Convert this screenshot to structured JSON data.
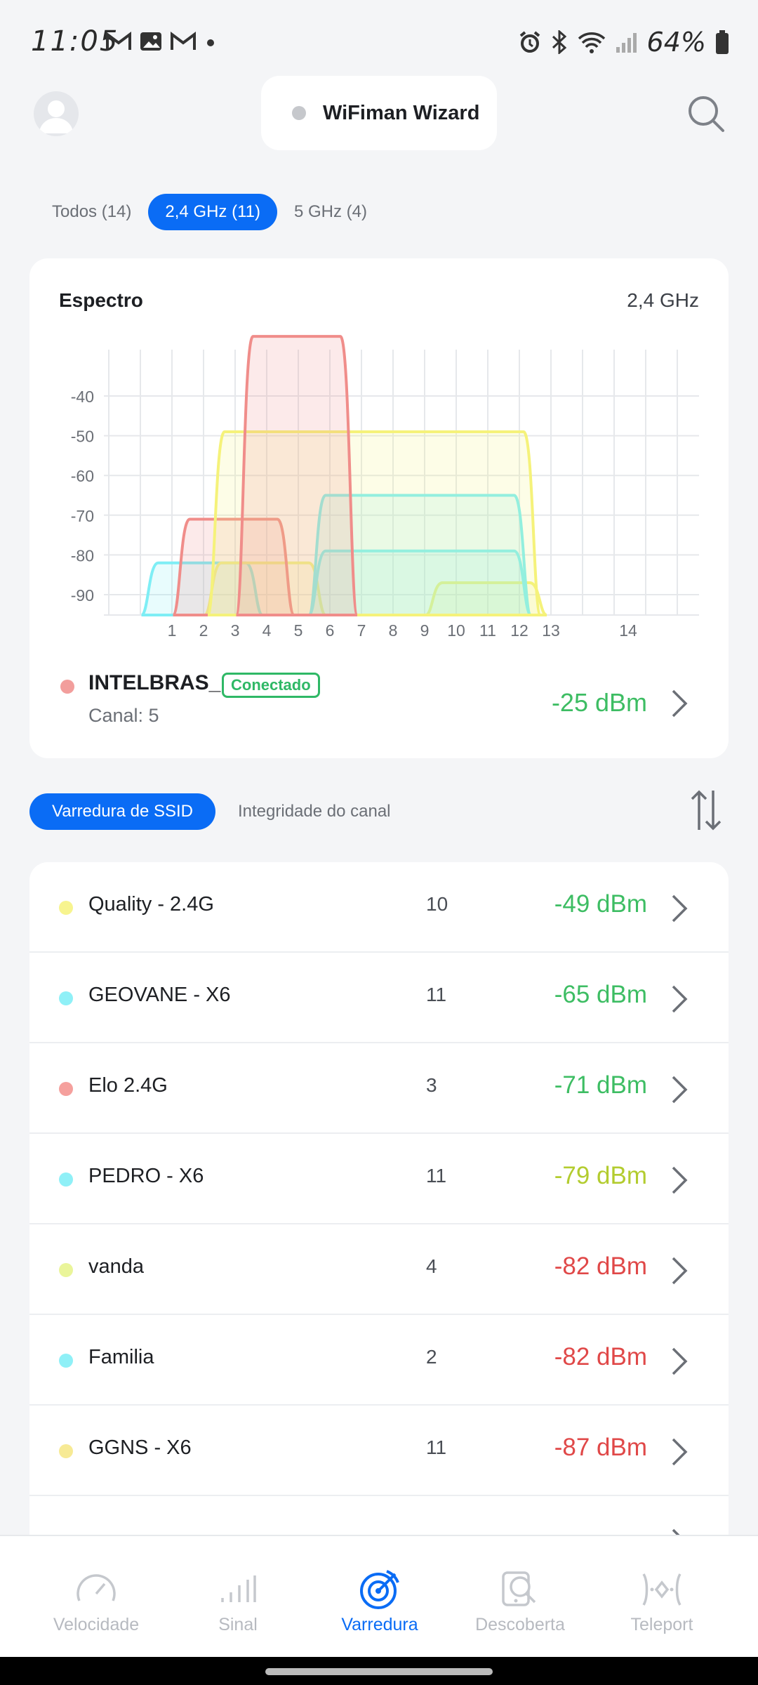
{
  "status_bar": {
    "time": "11:05",
    "battery": "64%"
  },
  "header": {
    "wizard_label": "WiFiman Wizard"
  },
  "band_tabs": [
    {
      "label": "Todos (14)",
      "active": false
    },
    {
      "label": "2,4 GHz (11)",
      "active": true
    },
    {
      "label": "5 GHz (4)",
      "active": false
    }
  ],
  "spectrum": {
    "title": "Espectro",
    "band": "2,4 GHz",
    "connected": {
      "ssid": "INTELBRAS_",
      "badge": "Conectado",
      "channel": "Canal: 5",
      "signal": "-25 dBm",
      "color": "#f29e9c"
    }
  },
  "chart_data": {
    "type": "area",
    "y_ticks": [
      "-40",
      "-50",
      "-60",
      "-70",
      "-80",
      "-90"
    ],
    "x_ticks": [
      "1",
      "2",
      "3",
      "4",
      "5",
      "6",
      "7",
      "8",
      "9",
      "10",
      "11",
      "12",
      "13",
      "14"
    ],
    "ylim": [
      -95,
      -30
    ],
    "grid": true,
    "series": [
      {
        "channel_from": 3.3,
        "channel_to": 6.6,
        "center": 5,
        "dbm": -25,
        "color": "#f08d8a"
      },
      {
        "channel_from": 2.4,
        "channel_to": 12.4,
        "center": 10,
        "dbm": -49,
        "color": "#f5f27a"
      },
      {
        "channel_from": 5.6,
        "channel_to": 12.1,
        "center": 11,
        "dbm": -65,
        "color": "#7eeef5"
      },
      {
        "channel_from": 1.3,
        "channel_to": 4.6,
        "center": 3,
        "dbm": -71,
        "color": "#f08d8a"
      },
      {
        "channel_from": 5.6,
        "channel_to": 12.1,
        "center": 11,
        "dbm": -79,
        "color": "#7eeef5"
      },
      {
        "channel_from": 0.3,
        "channel_to": 3.6,
        "center": 2,
        "dbm": -82,
        "color": "#7eeef5"
      },
      {
        "channel_from": 2.3,
        "channel_to": 5.6,
        "center": 4,
        "dbm": -82,
        "color": "#eef58a"
      },
      {
        "channel_from": 9.3,
        "channel_to": 12.6,
        "center": 11,
        "dbm": -87,
        "color": "#f5f27a"
      }
    ]
  },
  "scan_tabs": [
    {
      "label": "Varredura de SSID",
      "active": true
    },
    {
      "label": "Integridade do canal",
      "active": false
    }
  ],
  "networks": [
    {
      "ssid": "Quality - 2.4G",
      "channel": "10",
      "signal": "-49 dBm",
      "dot": "#f7f48f",
      "signal_color": "#3dbd63"
    },
    {
      "ssid": "GEOVANE - X6",
      "channel": "11",
      "signal": "-65 dBm",
      "dot": "#8ff0f7",
      "signal_color": "#3dbd63"
    },
    {
      "ssid": "Elo 2.4G",
      "channel": "3",
      "signal": "-71 dBm",
      "dot": "#f5a09d",
      "signal_color": "#3dbd63"
    },
    {
      "ssid": "PEDRO - X6",
      "channel": "11",
      "signal": "-79 dBm",
      "dot": "#8ff0f7",
      "signal_color": "#b3cc2f"
    },
    {
      "ssid": "vanda",
      "channel": "4",
      "signal": "-82 dBm",
      "dot": "#eaf59a",
      "signal_color": "#e04848"
    },
    {
      "ssid": "Familia",
      "channel": "2",
      "signal": "-82 dBm",
      "dot": "#8ff0f7",
      "signal_color": "#e04848"
    },
    {
      "ssid": "GGNS - X6",
      "channel": "11",
      "signal": "-87 dBm",
      "dot": "#f7ea95",
      "signal_color": "#e04848"
    }
  ],
  "bottom_nav": [
    {
      "label": "Velocidade",
      "icon": "speedometer-icon",
      "active": false
    },
    {
      "label": "Sinal",
      "icon": "signal-bars-icon",
      "active": false
    },
    {
      "label": "Varredura",
      "icon": "radar-icon",
      "active": true
    },
    {
      "label": "Descoberta",
      "icon": "device-search-icon",
      "active": false
    },
    {
      "label": "Teleport",
      "icon": "teleport-icon",
      "active": false
    }
  ],
  "colors": {
    "accent": "#0a6cf5",
    "good": "#3dbd63",
    "fair": "#b3cc2f",
    "poor": "#e04848"
  }
}
